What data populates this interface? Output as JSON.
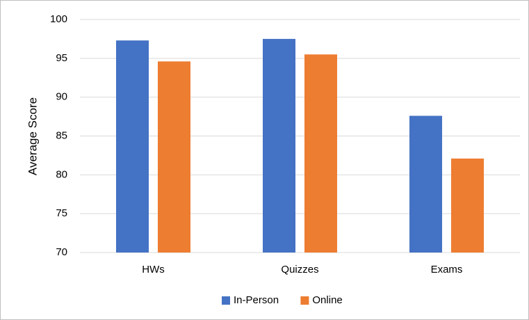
{
  "chart_data": {
    "type": "bar",
    "ylabel": "Average Score",
    "categories": [
      "HWs",
      "Quizzes",
      "Exams"
    ],
    "series": [
      {
        "name": "In-Person",
        "color": "#4472c4",
        "values": [
          97.3,
          97.5,
          87.6
        ]
      },
      {
        "name": "Online",
        "color": "#ed7d31",
        "values": [
          94.6,
          95.5,
          82.1
        ]
      }
    ],
    "ylim": [
      70,
      100
    ],
    "yticks": [
      70,
      75,
      80,
      85,
      90,
      95,
      100
    ],
    "grid": true,
    "legend": "bottom"
  }
}
